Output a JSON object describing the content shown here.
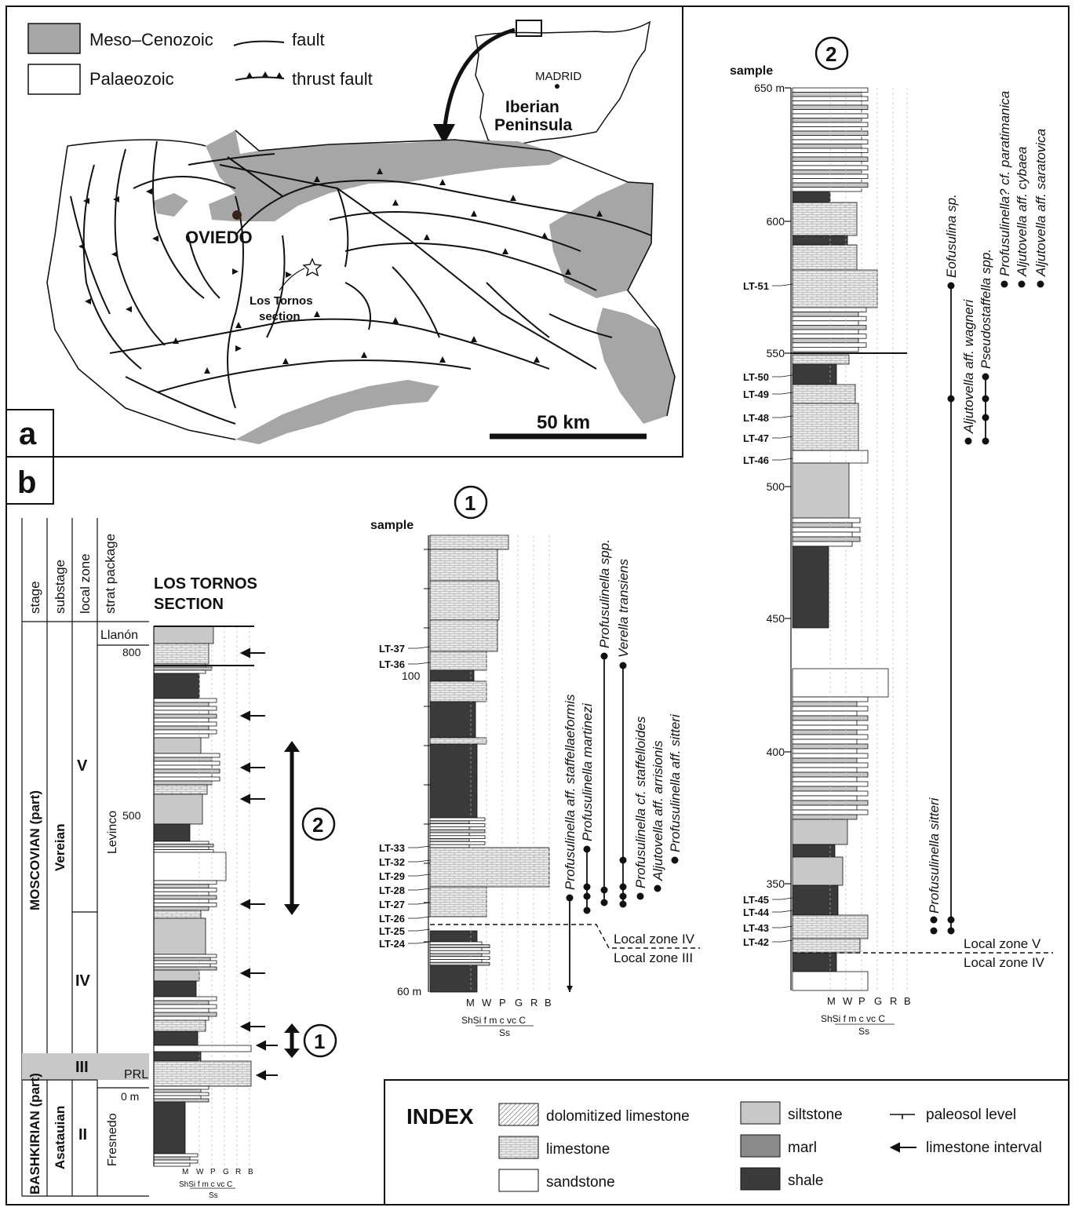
{
  "panel_a": {
    "label": "a",
    "legend": {
      "meso": "Meso–Cenozoic",
      "palaeo": "Palaeozoic",
      "fault": "fault",
      "thrust": "thrust fault"
    },
    "inset": {
      "city": "MADRID",
      "region_line1": "Iberian",
      "region_line2": "Peninsula"
    },
    "map": {
      "city": "OVIEDO",
      "site_line1": "Los Tornos",
      "site_line2": "section",
      "scale": "50 km"
    },
    "colors": {
      "meso_fill": "#a6a6a6",
      "line": "#111111"
    }
  },
  "panel_b": {
    "label": "b",
    "headers": [
      "stage",
      "substage",
      "local zone",
      "strat package"
    ],
    "section_title_1": "LOS TORNOS",
    "section_title_2": "SECTION",
    "stages": [
      "MOSCOVIAN (part)",
      "BASHKIRIAN (part)"
    ],
    "substages": [
      "Vereian",
      "Asatauian"
    ],
    "zones": [
      "V",
      "IV",
      "III",
      "II"
    ],
    "packages": [
      "Llanón",
      "Levinco",
      "PRL",
      "Fresnedo"
    ],
    "ticks": [
      "800",
      "500",
      "0 m"
    ],
    "markers": [
      "1",
      "2"
    ],
    "scale_top": [
      "M",
      "W",
      "P",
      "G",
      "R",
      "B"
    ],
    "scale_bottom": "ShSi f  m c vc C",
    "scale_ss": "Ss"
  },
  "section_1": {
    "marker": "1",
    "sample_label": "sample",
    "ticks": [
      "100",
      "60 m"
    ],
    "samples": [
      "LT-37",
      "LT-36",
      "LT-33",
      "LT-32",
      "LT-29",
      "LT-28",
      "LT-27",
      "LT-26",
      "LT-25",
      "LT-24"
    ],
    "taxa": [
      "Profusulinella aff. staffellaeformis",
      "Profusulinella martinezi",
      "Profusulinella spp.",
      "Verella transiens",
      "Profusulinella cf. staffelloides",
      "Aljutovella aff. arrisionis",
      "Profusulinella aff. sitteri"
    ],
    "zone_upper": "Local zone IV",
    "zone_lower": "Local zone III"
  },
  "section_2": {
    "marker": "2",
    "sample_label": "sample",
    "ticks": [
      "650 m",
      "600",
      "550",
      "500",
      "450",
      "400",
      "350"
    ],
    "samples": [
      "LT-51",
      "LT-50",
      "LT-49",
      "LT-48",
      "LT-47",
      "LT-46",
      "LT-45",
      "LT-44",
      "LT-43",
      "LT-42"
    ],
    "taxa": [
      "Profusulinella sitteri",
      "Eofusulina sp.",
      "Aljutovella aff. wagneri",
      "Pseudostaffella spp.",
      "Profusulinella? cf. paratimanica",
      "Aljutovella aff. cybaea",
      "Aljutovella aff. saratovica"
    ],
    "zone_upper": "Local zone V",
    "zone_lower": "Local zone IV"
  },
  "index": {
    "title": "INDEX",
    "items": [
      "dolomitized limestone",
      "limestone",
      "sandstone",
      "siltstone",
      "marl",
      "shale",
      "paleosol level",
      "limestone interval"
    ],
    "colors": {
      "siltstone": "#c8c8c8",
      "marl": "#8a8a8a",
      "shale": "#3a3a3a",
      "limestone": "#e6e6e6"
    }
  }
}
